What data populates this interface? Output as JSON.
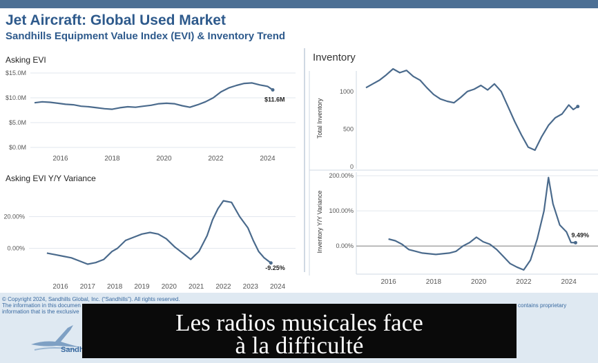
{
  "header": {
    "title": "Jet Aircraft:  Global Used Market",
    "subtitle": "Sandhills Equipment Value Index (EVI) & Inventory Trend"
  },
  "colors": {
    "line": "#4a6a8c",
    "brand": "#2e5a8c",
    "topbar": "#4c6f94",
    "banner": "#0a0a0a"
  },
  "chart_data": [
    {
      "type": "line",
      "title": "Asking EVI",
      "x_ticks": [
        "2016",
        "2018",
        "2020",
        "2022",
        "2024"
      ],
      "y_ticks": [
        "$0.0M",
        "$5.0M",
        "$10.0M",
        "$15.0M"
      ],
      "ylim": [
        0,
        15
      ],
      "end_label": "$11.6M",
      "grid": true,
      "x": [
        2015.0,
        2015.3,
        2015.6,
        2015.9,
        2016.2,
        2016.5,
        2016.8,
        2017.1,
        2017.4,
        2017.7,
        2018.0,
        2018.3,
        2018.6,
        2018.9,
        2019.2,
        2019.5,
        2019.8,
        2020.1,
        2020.4,
        2020.7,
        2021.0,
        2021.3,
        2021.6,
        2021.9,
        2022.2,
        2022.5,
        2022.8,
        2023.1,
        2023.4,
        2023.7,
        2024.0,
        2024.2
      ],
      "values": [
        9.0,
        9.2,
        9.1,
        8.9,
        8.7,
        8.6,
        8.3,
        8.2,
        8.0,
        7.8,
        7.7,
        8.0,
        8.2,
        8.1,
        8.3,
        8.5,
        8.8,
        8.9,
        8.8,
        8.4,
        8.1,
        8.6,
        9.2,
        10.0,
        11.2,
        12.0,
        12.5,
        12.9,
        13.0,
        12.6,
        12.3,
        11.6
      ]
    },
    {
      "type": "line",
      "title": "Asking EVI Y/Y Variance",
      "x_ticks": [
        "2016",
        "2017",
        "2018",
        "2019",
        "2020",
        "2021",
        "2022",
        "2023",
        "2024"
      ],
      "y_ticks": [
        "0.00%",
        "20.00%"
      ],
      "ylim": [
        -15,
        35
      ],
      "end_label": "-9.25%",
      "grid": true,
      "x": [
        2015.5,
        2015.8,
        2016.1,
        2016.4,
        2016.7,
        2017.0,
        2017.3,
        2017.6,
        2017.9,
        2018.1,
        2018.4,
        2018.7,
        2019.0,
        2019.3,
        2019.6,
        2019.9,
        2020.2,
        2020.5,
        2020.8,
        2021.1,
        2021.4,
        2021.6,
        2021.8,
        2022.0,
        2022.3,
        2022.6,
        2022.9,
        2023.1,
        2023.3,
        2023.5,
        2023.75
      ],
      "values": [
        -3,
        -4,
        -5,
        -6,
        -8,
        -10,
        -9,
        -7,
        -2,
        0,
        5,
        7,
        9,
        10,
        9,
        6,
        1,
        -3,
        -7,
        -2,
        8,
        18,
        25,
        30,
        29,
        20,
        13,
        5,
        -2,
        -6,
        -9.25
      ]
    },
    {
      "type": "line",
      "title": "Inventory",
      "ylabel": "Total Inventory",
      "x_ticks": [],
      "y_ticks": [
        "0",
        "500",
        "1000"
      ],
      "ylim": [
        0,
        1300
      ],
      "grid": false,
      "x": [
        2015.0,
        2015.3,
        2015.6,
        2015.9,
        2016.2,
        2016.5,
        2016.8,
        2017.1,
        2017.4,
        2017.7,
        2018.0,
        2018.3,
        2018.6,
        2018.9,
        2019.2,
        2019.5,
        2019.8,
        2020.1,
        2020.4,
        2020.7,
        2021.0,
        2021.3,
        2021.6,
        2021.9,
        2022.2,
        2022.5,
        2022.8,
        2023.1,
        2023.4,
        2023.7,
        2024.0,
        2024.2,
        2024.4
      ],
      "values": [
        1050,
        1100,
        1150,
        1220,
        1300,
        1250,
        1280,
        1200,
        1150,
        1050,
        960,
        900,
        870,
        850,
        920,
        1000,
        1030,
        1080,
        1020,
        1100,
        1000,
        800,
        600,
        420,
        260,
        220,
        400,
        550,
        650,
        700,
        820,
        760,
        800
      ]
    },
    {
      "type": "line",
      "title": "",
      "ylabel": "Inventory  Y/Y Variance",
      "x_ticks": [
        "2016",
        "2018",
        "2020",
        "2022",
        "2024"
      ],
      "y_ticks": [
        "0.00%",
        "100.00%",
        "200.00%"
      ],
      "ylim": [
        -80,
        210
      ],
      "end_label": "9.49%",
      "grid": true,
      "x": [
        2016.0,
        2016.3,
        2016.6,
        2016.9,
        2017.2,
        2017.5,
        2017.8,
        2018.1,
        2018.4,
        2018.7,
        2019.0,
        2019.3,
        2019.6,
        2019.9,
        2020.2,
        2020.5,
        2020.8,
        2021.1,
        2021.4,
        2021.7,
        2022.0,
        2022.3,
        2022.6,
        2022.9,
        2023.1,
        2023.3,
        2023.6,
        2023.9,
        2024.1,
        2024.3
      ],
      "values": [
        20,
        15,
        5,
        -10,
        -15,
        -20,
        -22,
        -24,
        -22,
        -20,
        -15,
        0,
        10,
        25,
        12,
        5,
        -10,
        -30,
        -50,
        -60,
        -68,
        -40,
        20,
        100,
        195,
        120,
        60,
        40,
        10,
        9.49
      ]
    }
  ],
  "footer": {
    "copyright": "© Copyright 2024, Sandhills Global, Inc. (“Sandhills”). All rights reserved.",
    "info1": "The information in this documen",
    "info2": "information that is the exclusive",
    "info_right": "contains proprietary",
    "logo_text": "Sandhills G"
  },
  "banner": {
    "line1": "Les radios musicales face",
    "line2": "à la difficulté"
  }
}
